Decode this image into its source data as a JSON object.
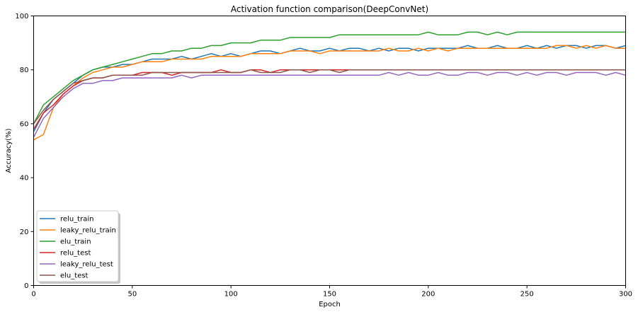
{
  "chart_data": {
    "type": "line",
    "title": "Activation function comparison(DeepConvNet)",
    "xlabel": "Epoch",
    "ylabel": "Accuracy(%)",
    "xlim": [
      0,
      300
    ],
    "ylim": [
      0,
      100
    ],
    "xticks": [
      0,
      50,
      100,
      150,
      200,
      250,
      300
    ],
    "yticks": [
      0,
      20,
      40,
      60,
      80,
      100
    ],
    "grid": false,
    "legend_position": "lower-left",
    "x": [
      0,
      5,
      10,
      15,
      20,
      25,
      30,
      35,
      40,
      45,
      50,
      55,
      60,
      65,
      70,
      75,
      80,
      85,
      90,
      95,
      100,
      105,
      110,
      115,
      120,
      125,
      130,
      135,
      140,
      145,
      150,
      155,
      160,
      165,
      170,
      175,
      180,
      185,
      190,
      195,
      200,
      205,
      210,
      215,
      220,
      225,
      230,
      235,
      240,
      245,
      250,
      255,
      260,
      265,
      270,
      275,
      280,
      285,
      290,
      295,
      300
    ],
    "series": [
      {
        "name": "relu_train",
        "color": "#1f77b4",
        "values": [
          57,
          64,
          69,
          72,
          75,
          78,
          80,
          81,
          81,
          82,
          82,
          83,
          84,
          84,
          84,
          85,
          84,
          85,
          86,
          85,
          86,
          85,
          86,
          87,
          87,
          86,
          87,
          88,
          87,
          87,
          88,
          87,
          88,
          88,
          87,
          88,
          87,
          88,
          88,
          87,
          88,
          88,
          88,
          88,
          89,
          88,
          88,
          89,
          88,
          88,
          89,
          88,
          89,
          88,
          89,
          89,
          88,
          89,
          89,
          88,
          89
        ]
      },
      {
        "name": "leaky_relu_train",
        "color": "#ff7f0e",
        "values": [
          54,
          56,
          66,
          71,
          74,
          77,
          79,
          80,
          81,
          81,
          82,
          83,
          83,
          83,
          84,
          84,
          84,
          84,
          85,
          85,
          85,
          85,
          86,
          86,
          86,
          86,
          87,
          87,
          87,
          86,
          87,
          87,
          87,
          87,
          87,
          87,
          88,
          87,
          87,
          88,
          87,
          88,
          87,
          88,
          88,
          88,
          88,
          88,
          88,
          88,
          88,
          88,
          88,
          89,
          89,
          88,
          89,
          88,
          89,
          88,
          88
        ]
      },
      {
        "name": "elu_train",
        "color": "#2ca02c",
        "values": [
          60,
          67,
          70,
          73,
          76,
          78,
          80,
          81,
          82,
          83,
          84,
          85,
          86,
          86,
          87,
          87,
          88,
          88,
          89,
          89,
          90,
          90,
          90,
          91,
          91,
          91,
          92,
          92,
          92,
          92,
          92,
          93,
          93,
          93,
          93,
          93,
          93,
          93,
          93,
          93,
          94,
          93,
          93,
          93,
          94,
          94,
          93,
          94,
          93,
          94,
          94,
          94,
          94,
          94,
          94,
          94,
          94,
          94,
          94,
          94,
          94
        ]
      },
      {
        "name": "relu_test",
        "color": "#d62728",
        "values": [
          58,
          64,
          67,
          71,
          74,
          76,
          77,
          77,
          78,
          78,
          78,
          79,
          79,
          79,
          78,
          79,
          79,
          79,
          79,
          80,
          79,
          79,
          80,
          80,
          79,
          80,
          80,
          80,
          80,
          80,
          80,
          80,
          80,
          80,
          80,
          80,
          80,
          80,
          80,
          80,
          80,
          80,
          80,
          80,
          80,
          80,
          80,
          80,
          80,
          80,
          80,
          80,
          80,
          80,
          80,
          80,
          80,
          80,
          80,
          80,
          80
        ]
      },
      {
        "name": "leaky_relu_test",
        "color": "#9467bd",
        "values": [
          55,
          62,
          66,
          70,
          73,
          75,
          75,
          76,
          76,
          77,
          77,
          77,
          77,
          77,
          77,
          78,
          77,
          78,
          78,
          78,
          78,
          78,
          78,
          78,
          78,
          78,
          78,
          78,
          78,
          78,
          78,
          78,
          78,
          78,
          78,
          78,
          79,
          78,
          79,
          78,
          78,
          79,
          78,
          78,
          79,
          79,
          78,
          79,
          79,
          78,
          79,
          78,
          79,
          79,
          78,
          79,
          79,
          79,
          78,
          79,
          78
        ]
      },
      {
        "name": "elu_test",
        "color": "#8c564b",
        "values": [
          60,
          65,
          69,
          72,
          75,
          76,
          77,
          77,
          78,
          78,
          78,
          78,
          79,
          79,
          79,
          79,
          79,
          79,
          79,
          79,
          79,
          79,
          80,
          79,
          79,
          79,
          80,
          80,
          79,
          80,
          80,
          79,
          80,
          80,
          80,
          80,
          80,
          80,
          80,
          80,
          80,
          80,
          80,
          80,
          80,
          80,
          80,
          80,
          80,
          80,
          80,
          80,
          80,
          80,
          80,
          80,
          80,
          80,
          80,
          80,
          80
        ]
      }
    ]
  }
}
